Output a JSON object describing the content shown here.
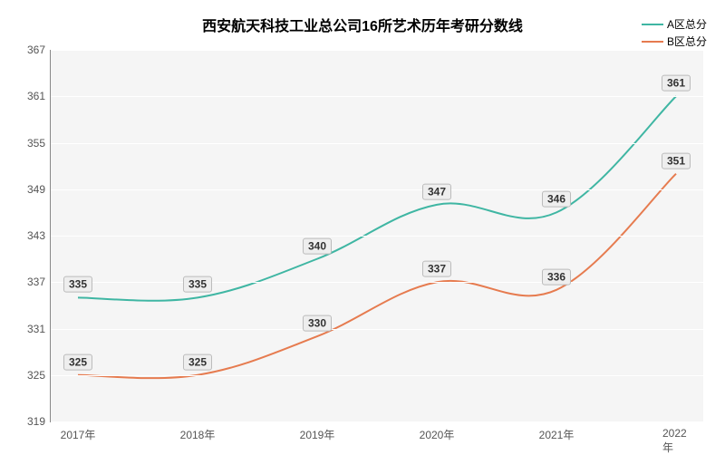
{
  "chart": {
    "type": "line",
    "title": "西安航天科技工业总公司16所艺术历年考研分数线",
    "title_fontsize": 16,
    "title_color": "#000000",
    "background_color": "#ffffff",
    "plot_background": "#f5f5f5",
    "grid_color": "#ffffff",
    "axis_color": "#888888",
    "tick_color": "#555555",
    "tick_fontsize": 12,
    "xlim": [
      2017,
      2022
    ],
    "ylim": [
      319,
      367
    ],
    "ytick_step": 6,
    "categories": [
      "2017年",
      "2018年",
      "2019年",
      "2020年",
      "2021年",
      "2022年"
    ],
    "yticks": [
      319,
      325,
      331,
      337,
      343,
      349,
      355,
      361,
      367
    ],
    "series": [
      {
        "name": "A区总分",
        "color": "#3fb6a3",
        "line_width": 2,
        "values": [
          335,
          335,
          340,
          347,
          346,
          361
        ]
      },
      {
        "name": "B区总分",
        "color": "#e67b4f",
        "line_width": 2,
        "values": [
          325,
          325,
          330,
          337,
          336,
          351
        ]
      }
    ],
    "label_style": {
      "background": "#eeeeee",
      "border_color": "#bbbbbb",
      "fontsize": 12,
      "font_weight": "bold",
      "color": "#333333"
    }
  }
}
